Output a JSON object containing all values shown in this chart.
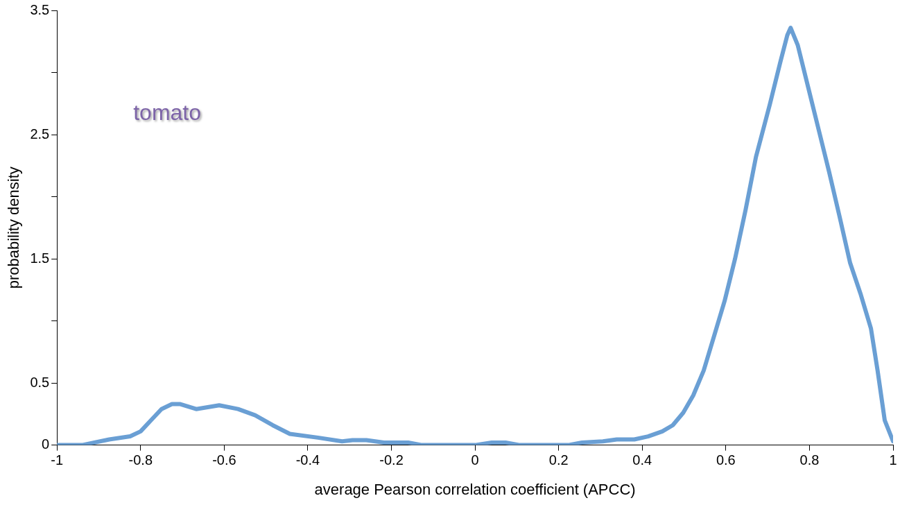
{
  "chart_data": {
    "type": "line",
    "xlabel": "average Pearson correlation coefficient (APCC)",
    "ylabel": "probability density",
    "annotations": [
      "tomato"
    ],
    "x": [
      -1,
      -0.94,
      -0.875,
      -0.825,
      -0.8,
      -0.775,
      -0.75,
      -0.725,
      -0.705,
      -0.667,
      -0.612,
      -0.567,
      -0.526,
      -0.484,
      -0.443,
      -0.376,
      -0.318,
      -0.293,
      -0.26,
      -0.218,
      -0.16,
      -0.127,
      0,
      0.04,
      0.073,
      0.107,
      0.223,
      0.256,
      0.306,
      0.339,
      0.381,
      0.414,
      0.448,
      0.473,
      0.498,
      0.522,
      0.547,
      0.572,
      0.597,
      0.622,
      0.647,
      0.672,
      0.705,
      0.73,
      0.747,
      0.755,
      0.772,
      0.797,
      0.822,
      0.847,
      0.872,
      0.897,
      0.922,
      0.947,
      0.963,
      0.98,
      1
    ],
    "series": [
      {
        "color": "#6a9fd4",
        "values": [
          0,
          0,
          0.045,
          0.07,
          0.11,
          0.2,
          0.29,
          0.33,
          0.33,
          0.29,
          0.32,
          0.29,
          0.24,
          0.16,
          0.09,
          0.06,
          0.03,
          0.04,
          0.04,
          0.02,
          0.02,
          0,
          0,
          0.02,
          0.02,
          0,
          0,
          0.02,
          0.03,
          0.045,
          0.045,
          0.07,
          0.11,
          0.16,
          0.26,
          0.4,
          0.6,
          0.88,
          1.16,
          1.5,
          1.89,
          2.32,
          2.74,
          3.08,
          3.3,
          3.36,
          3.22,
          2.88,
          2.54,
          2.2,
          1.84,
          1.47,
          1.22,
          0.94,
          0.6,
          0.2,
          0.03
        ]
      }
    ],
    "xlim": [
      -1,
      1
    ],
    "xticks": [
      -1,
      -0.8,
      -0.6,
      -0.4,
      -0.2,
      0,
      0.2,
      0.4,
      0.6,
      0.8,
      1
    ],
    "ylim": [
      0,
      3.5
    ],
    "yticks": [
      0,
      0.5,
      {
        "value": 1,
        "label": null
      },
      1.5,
      {
        "value": 2,
        "label": null
      },
      2.5,
      {
        "value": 3,
        "label": null
      },
      3.5
    ],
    "grid": false,
    "legend": false,
    "marker": "none",
    "line_style": "solid"
  }
}
